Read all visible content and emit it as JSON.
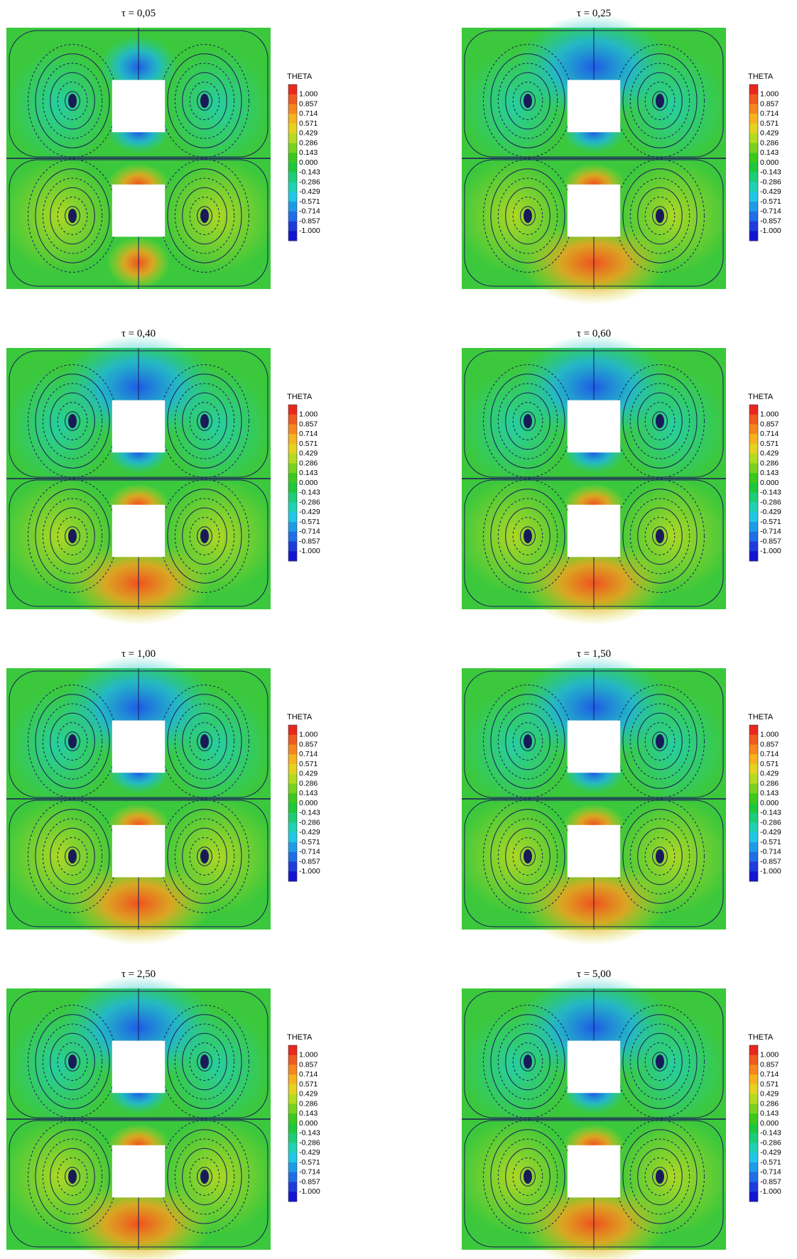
{
  "panels": [
    {
      "title": "τ = 0,05"
    },
    {
      "title": "τ = 0,25"
    },
    {
      "title": "τ = 0,40"
    },
    {
      "title": "τ = 0,60"
    },
    {
      "title": "τ = 1,00"
    },
    {
      "title": "τ = 1,50"
    },
    {
      "title": "τ = 2,50"
    },
    {
      "title": "τ = 5,00"
    }
  ],
  "legend": {
    "title": "THETA",
    "labels": [
      "1.000",
      "0.857",
      "0.714",
      "0.571",
      "0.429",
      "0.286",
      "0.143",
      "0.000",
      "-0.143",
      "-0.286",
      "-0.429",
      "-0.571",
      "-0.714",
      "-0.857",
      "-1.000"
    ],
    "colors": [
      "#e8281e",
      "#f05a1e",
      "#f5871e",
      "#f5b41e",
      "#e6d21e",
      "#b4dc1e",
      "#78d21e",
      "#3cc81e",
      "#1ec83c",
      "#1ecd78",
      "#1ed2b4",
      "#1ec8e6",
      "#1e9be6",
      "#1e6ee6",
      "#1e3cdc",
      "#1414d2"
    ]
  }
}
